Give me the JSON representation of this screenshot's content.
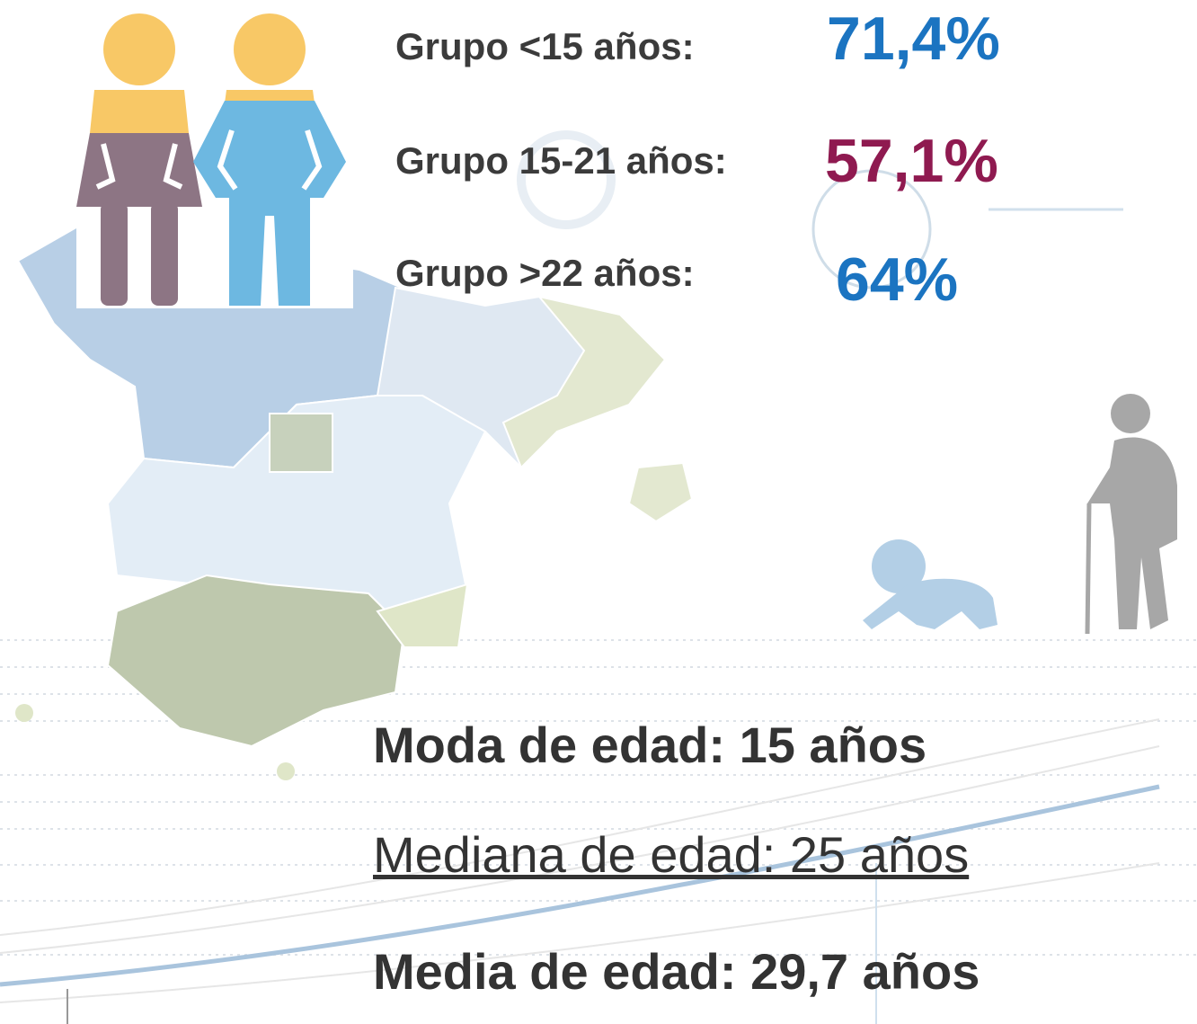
{
  "groups": [
    {
      "label": "Grupo <15 años:",
      "value": "71,4%"
    },
    {
      "label": "Grupo 15-21 años:",
      "value": "57,1%"
    },
    {
      "label": "Grupo >22 años:",
      "value": "64%"
    }
  ],
  "stats": [
    "Moda de edad: 15 años",
    "Mediana de edad: 25 años",
    "Media de edad: 29,7 años"
  ]
}
